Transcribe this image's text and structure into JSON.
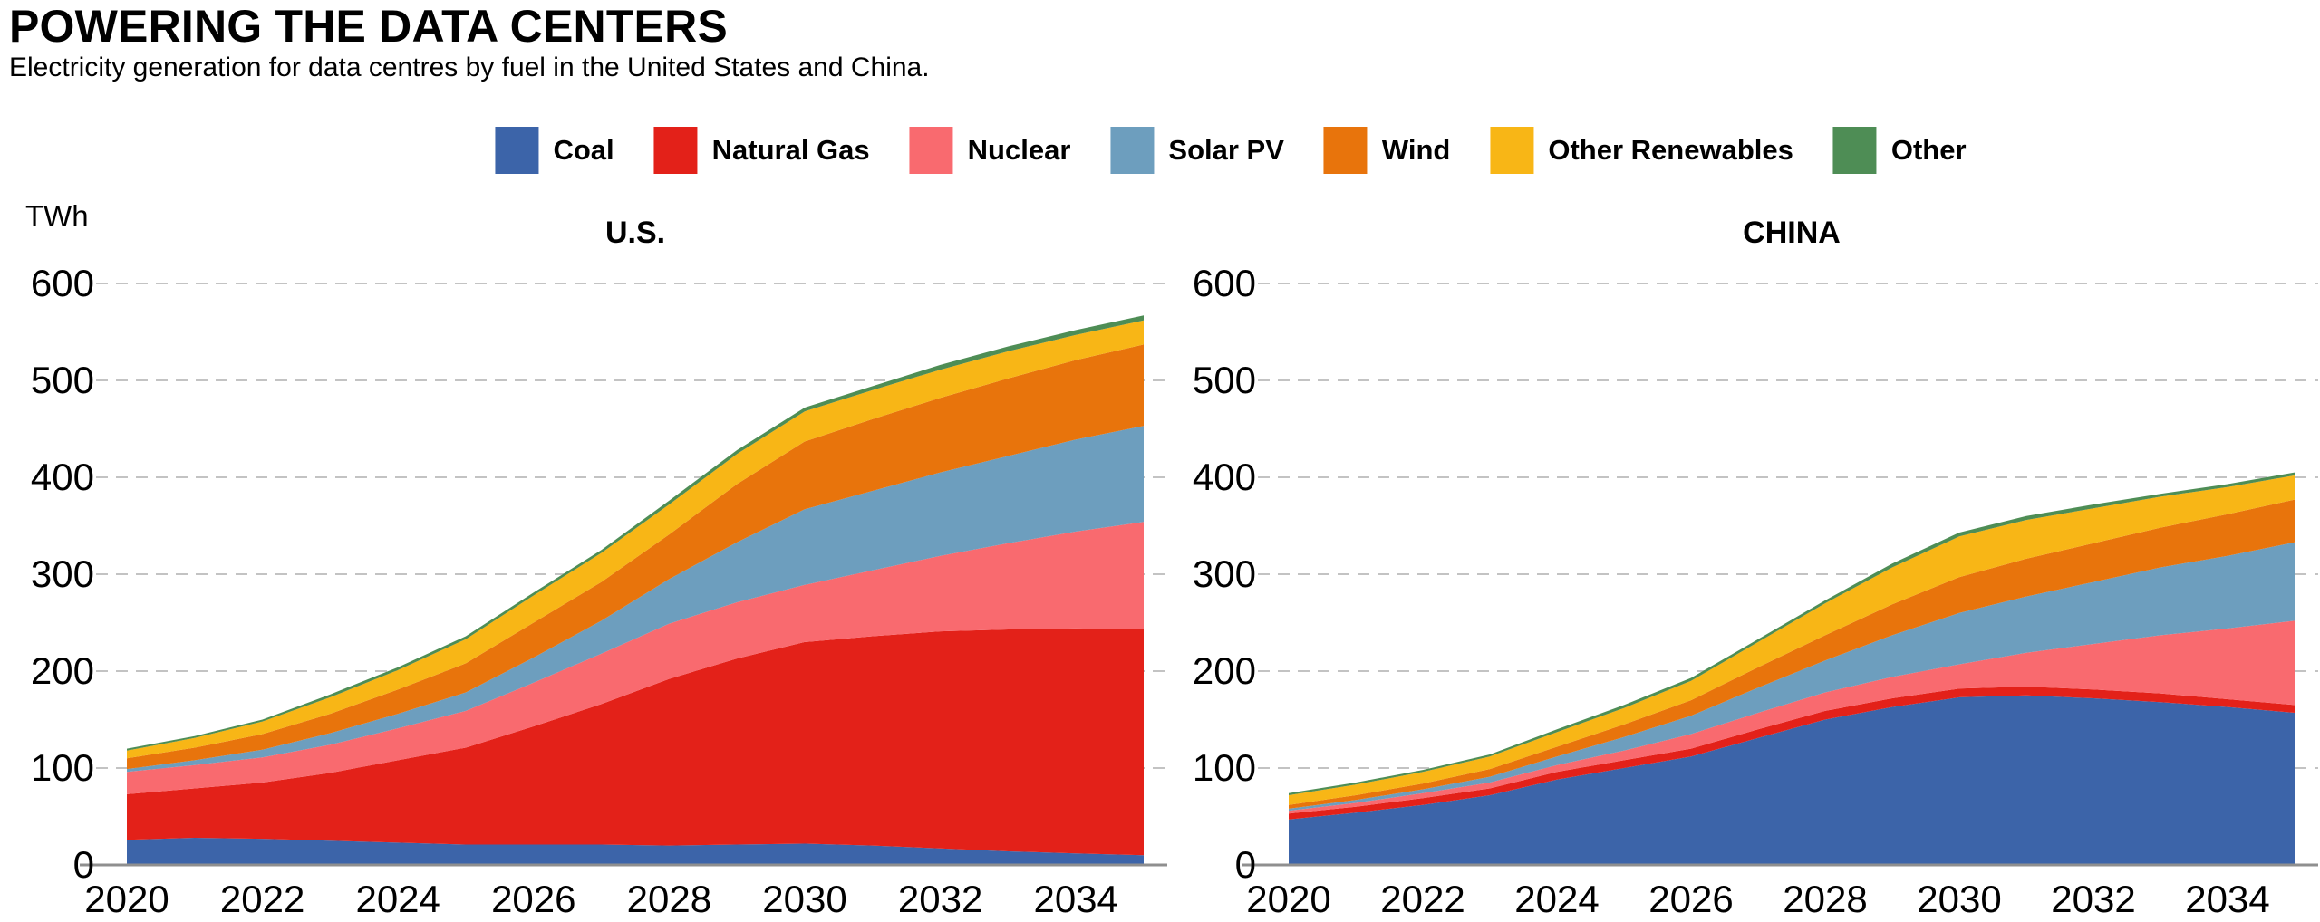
{
  "header": {
    "title": "POWERING THE DATA CENTERS",
    "subtitle": "Electricity generation for data centres by fuel in the United States and China."
  },
  "legend": {
    "items": [
      {
        "label": "Coal",
        "color": "#3C64A9"
      },
      {
        "label": "Natural Gas",
        "color": "#E32119"
      },
      {
        "label": "Nuclear",
        "color": "#F96A6F"
      },
      {
        "label": "Solar PV",
        "color": "#6D9EBE"
      },
      {
        "label": "Wind",
        "color": "#E8740C"
      },
      {
        "label": "Other Renewables",
        "color": "#F8B616"
      },
      {
        "label": "Other",
        "color": "#4E8D55"
      }
    ]
  },
  "axis_style": {
    "gridline_color": "#c3c3c3",
    "baseline_color": "#8f8f8f"
  },
  "chart_data": [
    {
      "type": "area",
      "title": "U.S.",
      "ylabel": "TWh",
      "ylim": [
        0,
        600
      ],
      "yticks": [
        600,
        500,
        400,
        300,
        200,
        100,
        0
      ],
      "grid": "dashed-horizontal",
      "legend_position": "top-center-shared",
      "x": [
        2020,
        2021,
        2022,
        2023,
        2024,
        2025,
        2026,
        2027,
        2028,
        2029,
        2030,
        2031,
        2032,
        2033,
        2034,
        2035
      ],
      "x_tick_labels": [
        "2020",
        "2022",
        "2024",
        "2026",
        "2028",
        "2030",
        "2032",
        "2034"
      ],
      "series": [
        {
          "name": "Coal",
          "color": "#3C64A9",
          "values": [
            26,
            28,
            27,
            25,
            23,
            21,
            21,
            21,
            20,
            21,
            22,
            20,
            17,
            14,
            12,
            10
          ]
        },
        {
          "name": "Natural Gas",
          "color": "#E32119",
          "values": [
            47,
            51,
            58,
            70,
            85,
            100,
            122,
            145,
            172,
            192,
            208,
            216,
            224,
            229,
            232,
            233
          ]
        },
        {
          "name": "Nuclear",
          "color": "#F96A6F",
          "values": [
            23,
            24,
            26,
            29,
            33,
            38,
            45,
            52,
            57,
            58,
            59,
            68,
            78,
            89,
            100,
            111
          ]
        },
        {
          "name": "Solar PV",
          "color": "#6D9EBE",
          "values": [
            3,
            5,
            8,
            12,
            15,
            19,
            26,
            34,
            46,
            62,
            78,
            82,
            86,
            90,
            95,
            99
          ]
        },
        {
          "name": "Wind",
          "color": "#E8740C",
          "values": [
            11,
            13,
            16,
            20,
            25,
            30,
            36,
            40,
            46,
            60,
            70,
            74,
            77,
            80,
            82,
            84
          ]
        },
        {
          "name": "Other Renewables",
          "color": "#F8B616",
          "values": [
            8,
            10,
            13,
            17,
            20,
            25,
            28,
            30,
            31,
            31,
            31,
            30,
            29,
            28,
            26,
            25
          ]
        },
        {
          "name": "Other",
          "color": "#4E8D55",
          "values": [
            2,
            2,
            2,
            3,
            3,
            3,
            3,
            3,
            4,
            4,
            4,
            4,
            5,
            5,
            5,
            5
          ]
        }
      ]
    },
    {
      "type": "area",
      "title": "CHINA",
      "ylabel": "TWh",
      "ylim": [
        0,
        600
      ],
      "yticks": [
        600,
        500,
        400,
        300,
        200,
        100,
        0
      ],
      "grid": "dashed-horizontal",
      "legend_position": "top-center-shared",
      "x": [
        2020,
        2021,
        2022,
        2023,
        2024,
        2025,
        2026,
        2027,
        2028,
        2029,
        2030,
        2031,
        2032,
        2033,
        2034,
        2035
      ],
      "x_tick_labels": [
        "2020",
        "2022",
        "2024",
        "2026",
        "2028",
        "2030",
        "2032",
        "2034"
      ],
      "series": [
        {
          "name": "Coal",
          "color": "#3C64A9",
          "values": [
            47,
            54,
            62,
            72,
            88,
            100,
            112,
            131,
            150,
            163,
            173,
            175,
            172,
            168,
            163,
            157
          ]
        },
        {
          "name": "Natural Gas",
          "color": "#E32119",
          "values": [
            6,
            6,
            7,
            7,
            8,
            8,
            8,
            9,
            9,
            9,
            9,
            9,
            9,
            9,
            8,
            8
          ]
        },
        {
          "name": "Nuclear",
          "color": "#F96A6F",
          "values": [
            3,
            4,
            5,
            6,
            7,
            10,
            15,
            17,
            19,
            22,
            25,
            35,
            47,
            60,
            73,
            87
          ]
        },
        {
          "name": "Solar PV",
          "color": "#6D9EBE",
          "values": [
            2,
            3,
            4,
            6,
            9,
            14,
            19,
            26,
            33,
            43,
            53,
            58,
            64,
            70,
            75,
            81
          ]
        },
        {
          "name": "Wind",
          "color": "#E8740C",
          "values": [
            4,
            5,
            6,
            8,
            10,
            13,
            16,
            21,
            26,
            32,
            37,
            39,
            40,
            41,
            43,
            44
          ]
        },
        {
          "name": "Other Renewables",
          "color": "#F8B616",
          "values": [
            10,
            11,
            12,
            13,
            15,
            17,
            20,
            26,
            33,
            38,
            42,
            40,
            36,
            32,
            28,
            25
          ]
        },
        {
          "name": "Other",
          "color": "#4E8D55",
          "values": [
            2,
            2,
            2,
            2,
            3,
            3,
            3,
            3,
            3,
            4,
            4,
            4,
            4,
            3,
            3,
            3
          ]
        }
      ]
    }
  ]
}
